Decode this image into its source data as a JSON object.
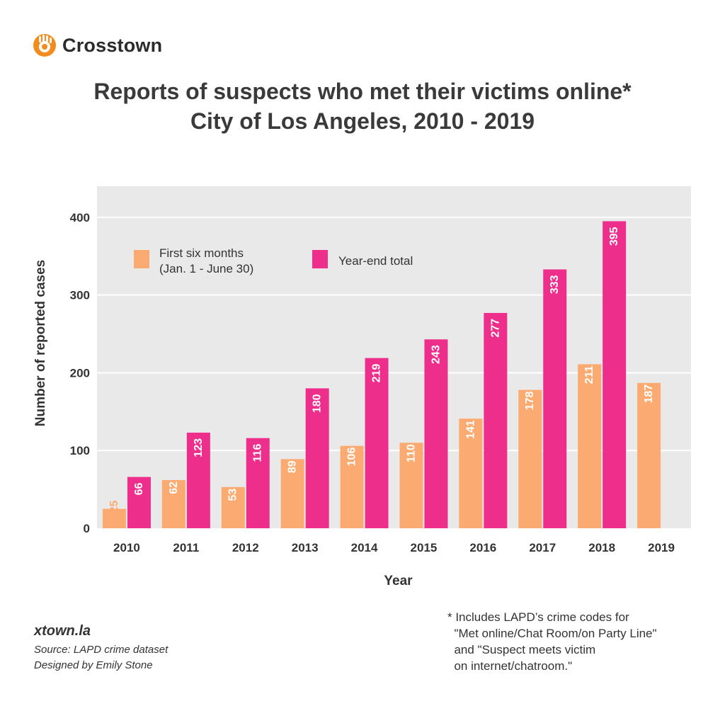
{
  "brand": {
    "name": "Crosstown",
    "accent": "#f28c1e",
    "logo_icon": "crosstown-hand-icon"
  },
  "title_line1": "Reports of suspects who met their victims online*",
  "title_line2": "City of Los Angeles, 2010 - 2019",
  "colors": {
    "first_half": "#fbab72",
    "year_end": "#ee2e8b",
    "plot_bg": "#e9e9e9",
    "grid": "#ffffff"
  },
  "chart_data": {
    "type": "bar",
    "xlabel": "Year",
    "ylabel": "Number of reported cases",
    "categories": [
      "2010",
      "2011",
      "2012",
      "2013",
      "2014",
      "2015",
      "2016",
      "2017",
      "2018",
      "2019"
    ],
    "ylim": [
      0,
      440
    ],
    "yticks": [
      0,
      100,
      200,
      300,
      400
    ],
    "grid": true,
    "legend_position": "top-left",
    "series": [
      {
        "name": "First six months\n(Jan. 1 - June 30)",
        "values": [
          25,
          62,
          53,
          89,
          106,
          110,
          141,
          178,
          211,
          187
        ]
      },
      {
        "name": "Year-end total",
        "values": [
          66,
          123,
          116,
          180,
          219,
          243,
          277,
          333,
          395,
          null
        ]
      }
    ]
  },
  "footer": {
    "site": "xtown.la",
    "source": "Source: LAPD crime dataset",
    "designer": "Designed by Emily Stone"
  },
  "note_lines": [
    "* Includes LAPD’s crime codes for",
    "  \"Met online/Chat Room/on Party Line\"",
    "  and \"Suspect meets victim",
    "  on internet/chatroom.\""
  ]
}
